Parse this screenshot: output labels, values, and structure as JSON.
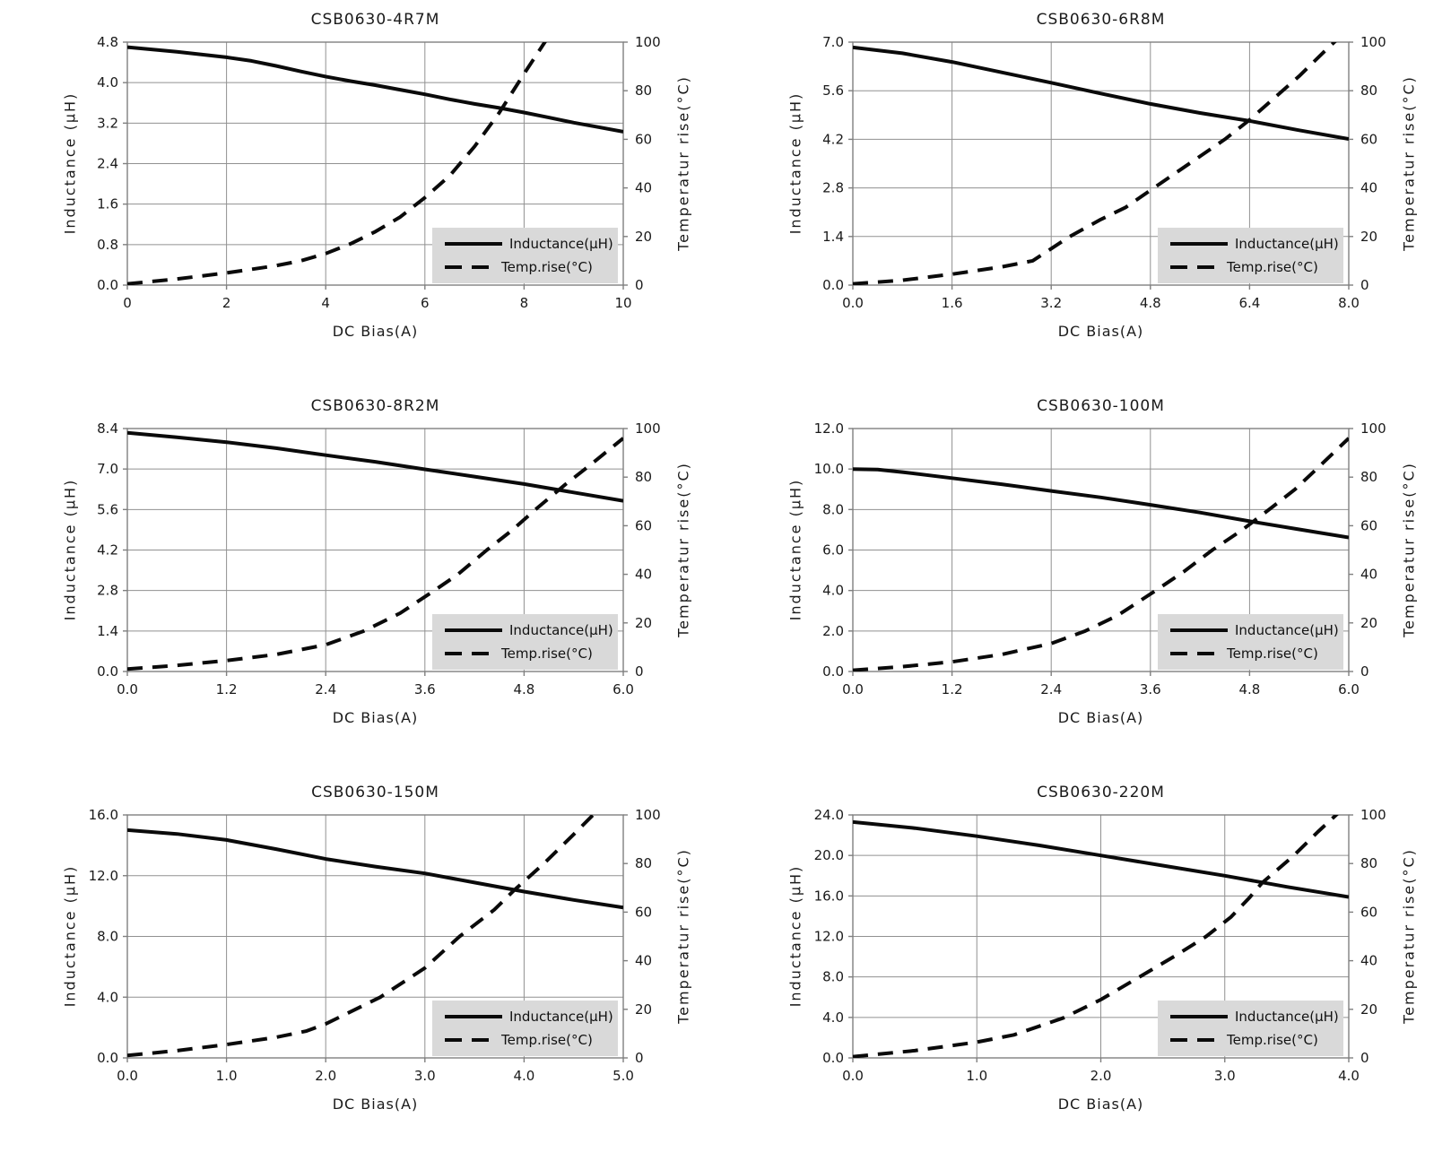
{
  "colors": {
    "line": "#0a0a0a",
    "grid": "#919191",
    "spine": "#7f7f7f",
    "legend_bg": "#d9d9d9",
    "text": "#1a1a1a",
    "background": "#ffffff"
  },
  "chart_data": [
    {
      "type": "line",
      "title": "CSB0630-4R7M",
      "xlabel": "DC Bias(A)",
      "ylabel": "Inductance (μH)",
      "y2label": "Temperatur rise(°C)",
      "xlim": [
        0,
        10
      ],
      "ylim": [
        0,
        4.8
      ],
      "y2lim": [
        0,
        100
      ],
      "grid": true,
      "x_ticks": [
        "0",
        "2",
        "4",
        "6",
        "8",
        "10"
      ],
      "y_ticks": [
        "0.0",
        "0.8",
        "1.6",
        "2.4",
        "3.2",
        "4.0",
        "4.8"
      ],
      "y2_ticks": [
        "0",
        "20",
        "40",
        "60",
        "80",
        "100"
      ],
      "legend": {
        "position": "lower right",
        "entries": [
          "Inductance(μH)",
          "Temp.rise(°C)"
        ]
      },
      "series": [
        {
          "name": "Inductance(μH)",
          "axis": "left",
          "line": "solid",
          "points": [
            [
              0,
              4.7
            ],
            [
              1,
              4.61
            ],
            [
              2,
              4.5
            ],
            [
              2.5,
              4.43
            ],
            [
              3,
              4.33
            ],
            [
              3.5,
              4.22
            ],
            [
              4,
              4.12
            ],
            [
              4.5,
              4.03
            ],
            [
              5,
              3.95
            ],
            [
              5.5,
              3.86
            ],
            [
              6,
              3.77
            ],
            [
              6.5,
              3.67
            ],
            [
              7,
              3.58
            ],
            [
              7.5,
              3.5
            ],
            [
              8,
              3.41
            ],
            [
              8.5,
              3.31
            ],
            [
              9,
              3.21
            ],
            [
              9.5,
              3.12
            ],
            [
              10,
              3.03
            ]
          ]
        },
        {
          "name": "Temp.rise(°C)",
          "axis": "right",
          "line": "dashed",
          "points": [
            [
              0,
              0.5
            ],
            [
              1,
              2.5
            ],
            [
              2,
              5
            ],
            [
              2.5,
              6.5
            ],
            [
              3,
              8
            ],
            [
              3.5,
              10
            ],
            [
              4,
              13
            ],
            [
              4.5,
              17
            ],
            [
              5,
              22
            ],
            [
              5.5,
              28
            ],
            [
              6,
              36
            ],
            [
              6.5,
              45
            ],
            [
              7,
              57
            ],
            [
              7.5,
              71
            ],
            [
              8,
              87
            ],
            [
              8.45,
              101
            ]
          ]
        }
      ]
    },
    {
      "type": "line",
      "title": "CSB0630-6R8M",
      "xlabel": "DC Bias(A)",
      "ylabel": "Inductance (μH)",
      "y2label": "Temperatur rise(°C)",
      "xlim": [
        0,
        8
      ],
      "ylim": [
        0,
        7.0
      ],
      "y2lim": [
        0,
        100
      ],
      "grid": true,
      "x_ticks": [
        "0.0",
        "1.6",
        "3.2",
        "4.8",
        "6.4",
        "8.0"
      ],
      "y_ticks": [
        "0.0",
        "1.4",
        "2.8",
        "4.2",
        "5.6",
        "7.0"
      ],
      "y2_ticks": [
        "0",
        "20",
        "40",
        "60",
        "80",
        "100"
      ],
      "legend": {
        "position": "lower right",
        "entries": [
          "Inductance(μH)",
          "Temp.rise(°C)"
        ]
      },
      "series": [
        {
          "name": "Inductance(μH)",
          "axis": "left",
          "line": "solid",
          "points": [
            [
              0,
              6.85
            ],
            [
              0.8,
              6.68
            ],
            [
              1.6,
              6.43
            ],
            [
              2.4,
              6.13
            ],
            [
              3.2,
              5.83
            ],
            [
              4.0,
              5.52
            ],
            [
              4.8,
              5.22
            ],
            [
              5.6,
              4.96
            ],
            [
              6.4,
              4.73
            ],
            [
              7.2,
              4.46
            ],
            [
              8,
              4.21
            ]
          ]
        },
        {
          "name": "Temp.rise(°C)",
          "axis": "right",
          "line": "dashed",
          "points": [
            [
              0,
              0.5
            ],
            [
              0.8,
              2
            ],
            [
              1.6,
              4.5
            ],
            [
              2.4,
              7.5
            ],
            [
              2.9,
              10
            ],
            [
              3.5,
              20
            ],
            [
              4.0,
              27
            ],
            [
              4.4,
              32
            ],
            [
              4.8,
              39
            ],
            [
              5.2,
              46
            ],
            [
              5.6,
              53
            ],
            [
              6.0,
              60
            ],
            [
              6.4,
              68
            ],
            [
              6.8,
              77
            ],
            [
              7.2,
              86
            ],
            [
              7.6,
              96
            ],
            [
              7.85,
              102
            ]
          ]
        }
      ]
    },
    {
      "type": "line",
      "title": "CSB0630-8R2M",
      "xlabel": "DC Bias(A)",
      "ylabel": "Inductance (μH)",
      "y2label": "Temperatur rise(°C)",
      "xlim": [
        0,
        6
      ],
      "ylim": [
        0,
        8.4
      ],
      "y2lim": [
        0,
        100
      ],
      "grid": true,
      "x_ticks": [
        "0.0",
        "1.2",
        "2.4",
        "3.6",
        "4.8",
        "6.0"
      ],
      "y_ticks": [
        "0.0",
        "1.4",
        "2.8",
        "4.2",
        "5.6",
        "7.0",
        "8.4"
      ],
      "y2_ticks": [
        "0",
        "20",
        "40",
        "60",
        "80",
        "100"
      ],
      "legend": {
        "position": "lower right",
        "entries": [
          "Inductance(μH)",
          "Temp.rise(°C)"
        ]
      },
      "series": [
        {
          "name": "Inductance(μH)",
          "axis": "left",
          "line": "solid",
          "points": [
            [
              0,
              8.25
            ],
            [
              0.6,
              8.1
            ],
            [
              1.2,
              7.93
            ],
            [
              1.8,
              7.72
            ],
            [
              2.4,
              7.48
            ],
            [
              3.0,
              7.25
            ],
            [
              3.6,
              6.99
            ],
            [
              4.2,
              6.74
            ],
            [
              4.8,
              6.48
            ],
            [
              5.4,
              6.19
            ],
            [
              6,
              5.9
            ]
          ]
        },
        {
          "name": "Temp.rise(°C)",
          "axis": "right",
          "line": "dashed",
          "points": [
            [
              0,
              1
            ],
            [
              0.6,
              2.5
            ],
            [
              1.2,
              4.5
            ],
            [
              1.8,
              7
            ],
            [
              2.4,
              11
            ],
            [
              2.85,
              16.5
            ],
            [
              3.3,
              24
            ],
            [
              3.7,
              33
            ],
            [
              4.0,
              40
            ],
            [
              4.35,
              50
            ],
            [
              4.65,
              58
            ],
            [
              4.95,
              67
            ],
            [
              5.3,
              77
            ],
            [
              5.6,
              85
            ],
            [
              6.0,
              96
            ]
          ]
        }
      ]
    },
    {
      "type": "line",
      "title": "CSB0630-100M",
      "xlabel": "DC Bias(A)",
      "ylabel": "Inductance (μH)",
      "y2label": "Temperatur rise(°C)",
      "xlim": [
        0,
        6
      ],
      "ylim": [
        0,
        12.0
      ],
      "y2lim": [
        0,
        100
      ],
      "grid": true,
      "x_ticks": [
        "0.0",
        "1.2",
        "2.4",
        "3.6",
        "4.8",
        "6.0"
      ],
      "y_ticks": [
        "0.0",
        "2.0",
        "4.0",
        "6.0",
        "8.0",
        "10.0",
        "12.0"
      ],
      "y2_ticks": [
        "0",
        "20",
        "40",
        "60",
        "80",
        "100"
      ],
      "legend": {
        "position": "lower right",
        "entries": [
          "Inductance(μH)",
          "Temp.rise(°C)"
        ]
      },
      "series": [
        {
          "name": "Inductance(μH)",
          "axis": "left",
          "line": "solid",
          "points": [
            [
              0,
              10.0
            ],
            [
              0.3,
              9.97
            ],
            [
              0.6,
              9.85
            ],
            [
              1.2,
              9.55
            ],
            [
              1.8,
              9.25
            ],
            [
              2.4,
              8.92
            ],
            [
              3.0,
              8.6
            ],
            [
              3.6,
              8.23
            ],
            [
              4.2,
              7.85
            ],
            [
              4.8,
              7.42
            ],
            [
              5.4,
              7.02
            ],
            [
              6,
              6.62
            ]
          ]
        },
        {
          "name": "Temp.rise(°C)",
          "axis": "right",
          "line": "dashed",
          "points": [
            [
              0,
              0.5
            ],
            [
              0.6,
              2
            ],
            [
              1.2,
              4
            ],
            [
              1.8,
              7
            ],
            [
              2.4,
              11.5
            ],
            [
              2.8,
              16.5
            ],
            [
              3.2,
              23
            ],
            [
              3.65,
              33
            ],
            [
              4.0,
              41
            ],
            [
              4.35,
              50
            ],
            [
              4.7,
              58
            ],
            [
              5.05,
              67
            ],
            [
              5.35,
              75
            ],
            [
              5.6,
              83
            ],
            [
              6.0,
              96
            ]
          ]
        }
      ]
    },
    {
      "type": "line",
      "title": "CSB0630-150M",
      "xlabel": "DC Bias(A)",
      "ylabel": "Inductance (μH)",
      "y2label": "Temperatur rise(°C)",
      "xlim": [
        0,
        5
      ],
      "ylim": [
        0,
        16.0
      ],
      "y2lim": [
        0,
        100
      ],
      "grid": true,
      "x_ticks": [
        "0.0",
        "1.0",
        "2.0",
        "3.0",
        "4.0",
        "5.0"
      ],
      "y_ticks": [
        "0.0",
        "4.0",
        "8.0",
        "12.0",
        "16.0"
      ],
      "y2_ticks": [
        "0",
        "20",
        "40",
        "60",
        "80",
        "100"
      ],
      "legend": {
        "position": "lower right",
        "entries": [
          "Inductance(μH)",
          "Temp.rise(°C)"
        ]
      },
      "series": [
        {
          "name": "Inductance(μH)",
          "axis": "left",
          "line": "solid",
          "points": [
            [
              0,
              15.0
            ],
            [
              0.5,
              14.75
            ],
            [
              1.0,
              14.35
            ],
            [
              1.5,
              13.75
            ],
            [
              2.0,
              13.1
            ],
            [
              2.5,
              12.6
            ],
            [
              3.0,
              12.15
            ],
            [
              3.5,
              11.55
            ],
            [
              4.0,
              10.95
            ],
            [
              4.5,
              10.4
            ],
            [
              5.0,
              9.9
            ]
          ]
        },
        {
          "name": "Temp.rise(°C)",
          "axis": "right",
          "line": "dashed",
          "points": [
            [
              0,
              1
            ],
            [
              0.5,
              3
            ],
            [
              1.0,
              5.5
            ],
            [
              1.5,
              8.5
            ],
            [
              1.8,
              11
            ],
            [
              2.0,
              14
            ],
            [
              2.55,
              25
            ],
            [
              3.0,
              37
            ],
            [
              3.35,
              50
            ],
            [
              3.7,
              61
            ],
            [
              3.9,
              69
            ],
            [
              4.2,
              80
            ],
            [
              4.5,
              92
            ],
            [
              4.72,
              101
            ]
          ]
        }
      ]
    },
    {
      "type": "line",
      "title": "CSB0630-220M",
      "xlabel": "DC Bias(A)",
      "ylabel": "Inductance (μH)",
      "y2label": "Temperatur rise(°C)",
      "xlim": [
        0,
        4
      ],
      "ylim": [
        0,
        24.0
      ],
      "y2lim": [
        0,
        100
      ],
      "grid": true,
      "x_ticks": [
        "0.0",
        "1.0",
        "2.0",
        "3.0",
        "4.0"
      ],
      "y_ticks": [
        "0.0",
        "4.0",
        "8.0",
        "12.0",
        "16.0",
        "20.0",
        "24.0"
      ],
      "y2_ticks": [
        "0",
        "20",
        "40",
        "60",
        "80",
        "100"
      ],
      "legend": {
        "position": "lower right",
        "entries": [
          "Inductance(μH)",
          "Temp.rise(°C)"
        ]
      },
      "series": [
        {
          "name": "Inductance(μH)",
          "axis": "left",
          "line": "solid",
          "points": [
            [
              0,
              23.3
            ],
            [
              0.5,
              22.7
            ],
            [
              1.0,
              21.9
            ],
            [
              1.5,
              21.0
            ],
            [
              2.0,
              20.0
            ],
            [
              2.5,
              19.0
            ],
            [
              3.0,
              18.0
            ],
            [
              3.5,
              16.9
            ],
            [
              4.0,
              15.9
            ]
          ]
        },
        {
          "name": "Temp.rise(°C)",
          "axis": "right",
          "line": "dashed",
          "points": [
            [
              0,
              0.5
            ],
            [
              0.5,
              3
            ],
            [
              1.0,
              6.5
            ],
            [
              1.3,
              9.5
            ],
            [
              1.7,
              16.5
            ],
            [
              2.0,
              24
            ],
            [
              2.3,
              33
            ],
            [
              2.6,
              42
            ],
            [
              2.85,
              50
            ],
            [
              3.05,
              58
            ],
            [
              3.2,
              66
            ],
            [
              3.3,
              72
            ],
            [
              3.55,
              83
            ],
            [
              3.75,
              93
            ],
            [
              3.92,
              101
            ]
          ]
        }
      ]
    }
  ]
}
